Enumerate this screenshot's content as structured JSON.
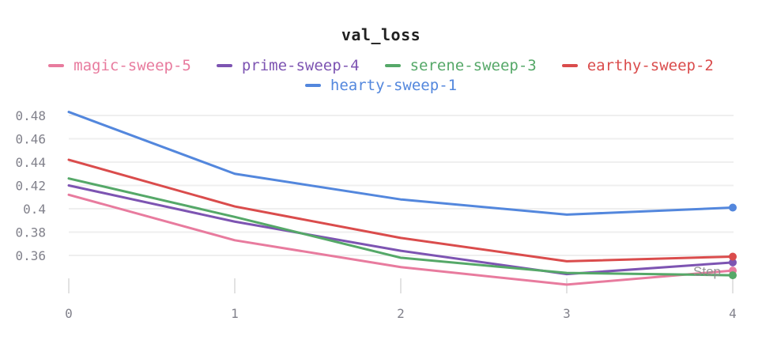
{
  "title": "val_loss",
  "axis": {
    "x_label": "Step",
    "x_ticks": [
      "0",
      "1",
      "2",
      "3",
      "4"
    ],
    "y_ticks": [
      "0.48",
      "0.46",
      "0.44",
      "0.42",
      "0.4",
      "0.38",
      "0.36"
    ]
  },
  "colors": {
    "background": "#ffffff",
    "title_text": "#212121",
    "gridline": "#efefef",
    "tick_mark": "#e2e2e2",
    "tick_text": "#81818b",
    "step_label_text": "#8b8b8b"
  },
  "chart_data": {
    "type": "line",
    "title": "val_loss",
    "xlabel": "Step",
    "ylabel": "",
    "x": [
      0,
      1,
      2,
      3,
      4
    ],
    "series": [
      {
        "name": "magic-sweep-5",
        "color": "#e87b9e",
        "values": [
          0.412,
          0.373,
          0.35,
          0.335,
          0.347
        ]
      },
      {
        "name": "prime-sweep-4",
        "color": "#7d54b2",
        "values": [
          0.42,
          0.389,
          0.364,
          0.344,
          0.354
        ]
      },
      {
        "name": "serene-sweep-3",
        "color": "#55a868",
        "values": [
          0.426,
          0.393,
          0.358,
          0.345,
          0.343
        ]
      },
      {
        "name": "earthy-sweep-2",
        "color": "#da4c4c",
        "values": [
          0.442,
          0.402,
          0.375,
          0.355,
          0.359
        ]
      },
      {
        "name": "hearty-sweep-1",
        "color": "#5387dd",
        "values": [
          0.483,
          0.43,
          0.408,
          0.395,
          0.401
        ]
      }
    ],
    "y_gridlines": [
      0.48,
      0.46,
      0.44,
      0.42,
      0.4,
      0.38,
      0.36
    ],
    "xlim": [
      0,
      4
    ],
    "ylim": [
      0.33,
      0.49
    ],
    "grid": "horizontal",
    "legend_position": "top",
    "endpoint_markers": true
  }
}
